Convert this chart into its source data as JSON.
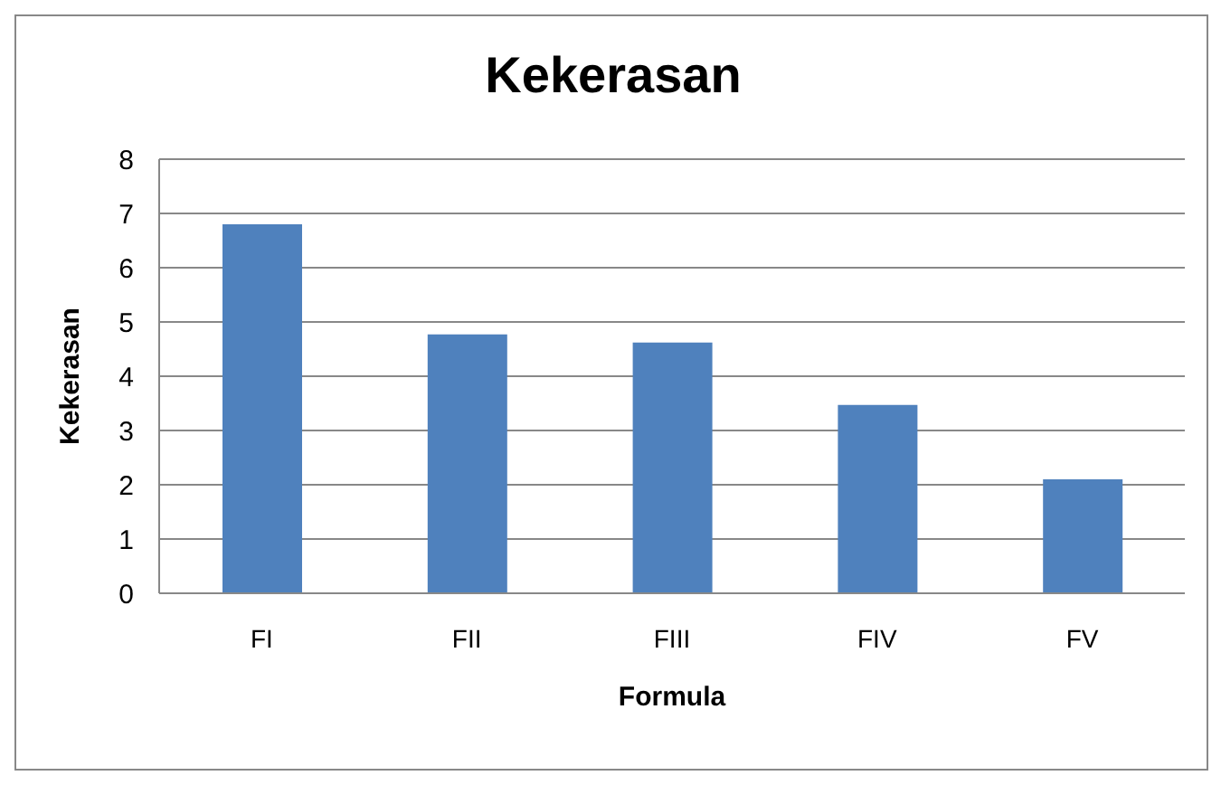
{
  "chart_data": {
    "type": "bar",
    "title": "Kekerasan",
    "xlabel": "Formula",
    "ylabel": "Kekerasan",
    "categories": [
      "FI",
      "FII",
      "FIII",
      "FIV",
      "FV"
    ],
    "values": [
      6.8,
      4.77,
      4.62,
      3.47,
      2.1
    ],
    "color": "#4f81bd",
    "ylim": [
      0,
      8
    ],
    "yticks": [
      0,
      1,
      2,
      3,
      4,
      5,
      6,
      7,
      8
    ],
    "grid": "y"
  }
}
